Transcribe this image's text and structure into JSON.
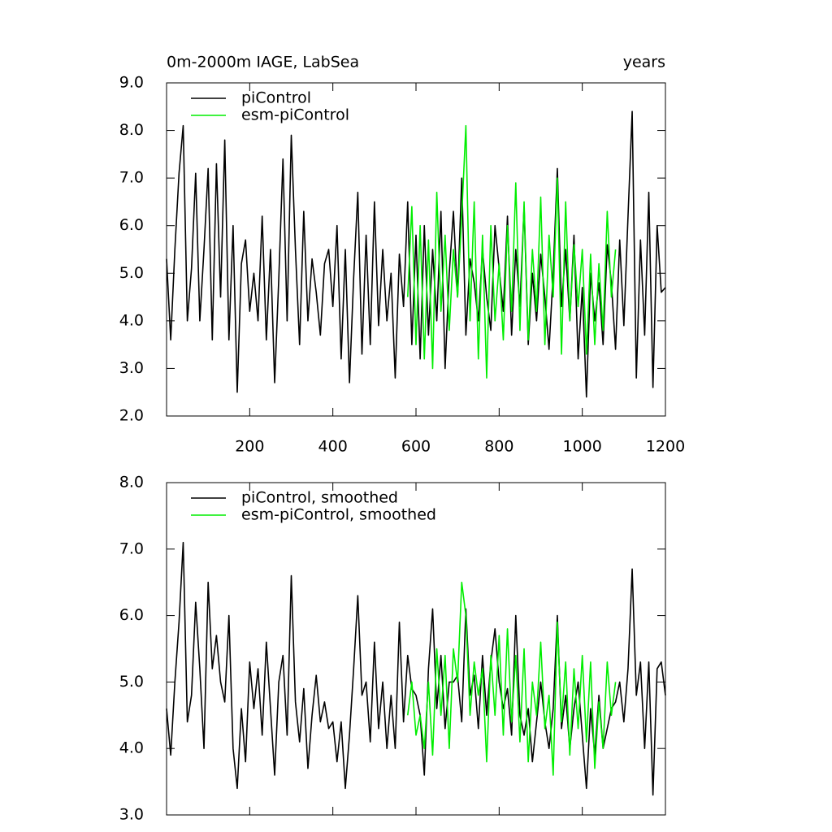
{
  "chart_data": [
    {
      "type": "line",
      "title": "0m-2000m IAGE, LabSea",
      "xlabel": "years",
      "xlim": [
        0,
        1200
      ],
      "xticks": [
        200,
        400,
        600,
        800,
        1000,
        1200
      ],
      "xtick_labels": true,
      "ylim": [
        2,
        9
      ],
      "yticks": [
        {
          "value": 2,
          "label": "2.0"
        },
        {
          "value": 3,
          "label": "3.0"
        },
        {
          "value": 4,
          "label": "4.0"
        },
        {
          "value": 5,
          "label": "5.0"
        },
        {
          "value": 6,
          "label": "6.0"
        },
        {
          "value": 7,
          "label": "7.0"
        },
        {
          "value": 8,
          "label": "8.0"
        },
        {
          "value": 9,
          "label": "9.0"
        }
      ],
      "legend": "upper left",
      "series": [
        {
          "name": "piControl",
          "color": "#000000",
          "x": [
            0,
            10,
            20,
            30,
            40,
            50,
            60,
            70,
            80,
            90,
            100,
            110,
            120,
            130,
            140,
            150,
            160,
            170,
            180,
            190,
            200,
            210,
            220,
            230,
            240,
            250,
            260,
            270,
            280,
            290,
            300,
            310,
            320,
            330,
            340,
            350,
            360,
            370,
            380,
            390,
            400,
            410,
            420,
            430,
            440,
            450,
            460,
            470,
            480,
            490,
            500,
            510,
            520,
            530,
            540,
            550,
            560,
            570,
            580,
            590,
            600,
            610,
            620,
            630,
            640,
            650,
            660,
            670,
            680,
            690,
            700,
            710,
            720,
            730,
            740,
            750,
            760,
            770,
            780,
            790,
            800,
            810,
            820,
            830,
            840,
            850,
            860,
            870,
            880,
            890,
            900,
            910,
            920,
            930,
            940,
            950,
            960,
            970,
            980,
            990,
            1000,
            1010,
            1020,
            1030,
            1040,
            1050,
            1060,
            1070,
            1080,
            1090,
            1100,
            1110,
            1120,
            1130,
            1140,
            1150,
            1160,
            1170,
            1180,
            1190,
            1200
          ],
          "values": [
            5.3,
            3.6,
            5.5,
            7.1,
            8.1,
            4.0,
            5.1,
            7.1,
            4.0,
            5.5,
            7.2,
            3.6,
            7.3,
            4.5,
            7.8,
            3.6,
            6.0,
            2.5,
            5.2,
            5.7,
            4.2,
            5.0,
            4.0,
            6.2,
            3.6,
            5.5,
            2.7,
            4.9,
            7.4,
            4.0,
            7.9,
            5.5,
            3.5,
            6.3,
            4.0,
            5.3,
            4.6,
            3.7,
            5.2,
            5.5,
            4.3,
            6.0,
            3.2,
            5.5,
            2.7,
            4.9,
            6.7,
            3.3,
            5.8,
            3.5,
            6.5,
            3.9,
            5.5,
            4.0,
            5.0,
            2.8,
            5.4,
            4.3,
            6.5,
            3.5,
            5.8,
            3.2,
            6.0,
            3.7,
            5.5,
            4.0,
            6.3,
            3.0,
            5.0,
            6.3,
            4.5,
            7.0,
            3.7,
            5.3,
            4.8,
            4.0,
            5.5,
            4.5,
            3.8,
            6.0,
            5.1,
            4.2,
            6.2,
            3.7,
            5.5,
            4.3,
            6.4,
            3.5,
            5.0,
            4.0,
            5.4,
            4.5,
            3.4,
            5.0,
            7.2,
            4.3,
            5.5,
            4.0,
            5.8,
            3.2,
            4.7,
            2.4,
            5.0,
            4.0,
            4.8,
            3.5,
            5.6,
            4.8,
            3.4,
            5.7,
            3.9,
            6.2,
            8.4,
            2.8,
            5.7,
            3.7,
            6.7,
            2.6,
            6.0,
            4.6,
            4.7
          ]
        },
        {
          "name": "esm-piControl",
          "color": "#00ee00",
          "x": [
            580,
            590,
            600,
            610,
            620,
            630,
            640,
            650,
            660,
            670,
            680,
            690,
            700,
            710,
            720,
            730,
            740,
            750,
            760,
            770,
            780,
            790,
            800,
            810,
            820,
            830,
            840,
            850,
            860,
            870,
            880,
            890,
            900,
            910,
            920,
            930,
            940,
            950,
            960,
            970,
            980,
            990,
            1000,
            1010,
            1020,
            1030,
            1040,
            1050,
            1060,
            1070,
            1080
          ],
          "values": [
            4.5,
            6.4,
            3.5,
            6.0,
            3.2,
            5.7,
            3.0,
            6.7,
            4.2,
            5.8,
            3.8,
            5.5,
            4.5,
            6.2,
            8.1,
            4.0,
            6.5,
            3.2,
            5.8,
            2.8,
            6.0,
            4.0,
            5.2,
            3.6,
            6.0,
            4.2,
            6.9,
            3.8,
            6.5,
            3.6,
            5.5,
            4.2,
            6.6,
            3.5,
            5.8,
            4.5,
            7.0,
            3.3,
            6.5,
            4.0,
            5.6,
            4.3,
            5.5,
            3.3,
            5.4,
            3.5,
            5.2,
            3.8,
            6.3,
            4.5,
            5.5
          ]
        }
      ]
    },
    {
      "type": "line",
      "xlim": [
        0,
        1200
      ],
      "xticks": [
        200,
        400,
        600,
        800,
        1000,
        1200
      ],
      "xtick_labels": false,
      "ylim": [
        3,
        8
      ],
      "yticks": [
        {
          "value": 3,
          "label": "3.0"
        },
        {
          "value": 4,
          "label": "4.0"
        },
        {
          "value": 5,
          "label": "5.0"
        },
        {
          "value": 6,
          "label": "6.0"
        },
        {
          "value": 7,
          "label": "7.0"
        },
        {
          "value": 8,
          "label": "8.0"
        }
      ],
      "legend": "upper left",
      "series": [
        {
          "name": "piControl, smoothed",
          "color": "#000000",
          "x": [
            0,
            10,
            20,
            30,
            40,
            50,
            60,
            70,
            80,
            90,
            100,
            110,
            120,
            130,
            140,
            150,
            160,
            170,
            180,
            190,
            200,
            210,
            220,
            230,
            240,
            250,
            260,
            270,
            280,
            290,
            300,
            310,
            320,
            330,
            340,
            350,
            360,
            370,
            380,
            390,
            400,
            410,
            420,
            430,
            440,
            450,
            460,
            470,
            480,
            490,
            500,
            510,
            520,
            530,
            540,
            550,
            560,
            570,
            580,
            590,
            600,
            610,
            620,
            630,
            640,
            650,
            660,
            670,
            680,
            690,
            700,
            710,
            720,
            730,
            740,
            750,
            760,
            770,
            780,
            790,
            800,
            810,
            820,
            830,
            840,
            850,
            860,
            870,
            880,
            890,
            900,
            910,
            920,
            930,
            940,
            950,
            960,
            970,
            980,
            990,
            1000,
            1010,
            1020,
            1030,
            1040,
            1050,
            1060,
            1070,
            1080,
            1090,
            1100,
            1110,
            1120,
            1130,
            1140,
            1150,
            1160,
            1170,
            1180,
            1190,
            1200
          ],
          "values": [
            4.6,
            3.9,
            5.0,
            5.9,
            7.1,
            4.4,
            4.8,
            6.2,
            5.2,
            4.0,
            6.5,
            5.2,
            5.7,
            5.0,
            4.7,
            6.0,
            4.0,
            3.4,
            4.6,
            3.8,
            5.3,
            4.6,
            5.2,
            4.2,
            5.6,
            4.6,
            3.6,
            5.0,
            5.4,
            4.2,
            6.6,
            4.7,
            4.1,
            4.9,
            3.7,
            4.5,
            5.1,
            4.4,
            4.7,
            4.3,
            4.4,
            3.8,
            4.4,
            3.4,
            4.2,
            5.2,
            6.3,
            4.8,
            5.0,
            4.1,
            5.6,
            4.3,
            5.0,
            4.0,
            4.8,
            4.0,
            5.9,
            4.4,
            5.4,
            4.9,
            4.8,
            4.5,
            3.6,
            5.2,
            6.1,
            4.6,
            5.4,
            4.3,
            5.0,
            5.0,
            5.1,
            4.4,
            6.1,
            4.8,
            5.1,
            4.3,
            5.4,
            4.5,
            5.3,
            5.8,
            5.0,
            4.6,
            4.9,
            4.2,
            6.0,
            4.5,
            4.2,
            4.6,
            3.8,
            4.4,
            5.0,
            4.4,
            4.0,
            4.6,
            6.0,
            4.3,
            4.8,
            4.0,
            4.6,
            5.0,
            4.2,
            3.4,
            4.6,
            3.9,
            4.8,
            4.0,
            4.3,
            4.6,
            4.7,
            5.0,
            4.4,
            5.2,
            6.7,
            4.8,
            5.3,
            4.0,
            5.3,
            3.3,
            5.2,
            5.3,
            4.8
          ]
        },
        {
          "name": "esm-piControl, smoothed",
          "color": "#00ee00",
          "x": [
            580,
            590,
            600,
            610,
            620,
            630,
            640,
            650,
            660,
            670,
            680,
            690,
            700,
            710,
            720,
            730,
            740,
            750,
            760,
            770,
            780,
            790,
            800,
            810,
            820,
            830,
            840,
            850,
            860,
            870,
            880,
            890,
            900,
            910,
            920,
            930,
            940,
            950,
            960,
            970,
            980,
            990,
            1000,
            1010,
            1020,
            1030,
            1040,
            1050,
            1060,
            1070,
            1080
          ],
          "values": [
            4.5,
            5.0,
            4.2,
            4.5,
            4.0,
            5.0,
            3.9,
            5.5,
            4.5,
            5.4,
            4.0,
            5.5,
            5.0,
            6.5,
            6.0,
            4.5,
            5.3,
            4.8,
            5.2,
            3.8,
            5.4,
            4.5,
            5.7,
            4.2,
            5.8,
            4.4,
            5.4,
            4.1,
            5.5,
            3.8,
            5.0,
            4.5,
            5.6,
            4.3,
            4.8,
            3.6,
            5.9,
            4.4,
            5.3,
            3.9,
            5.2,
            4.3,
            5.4,
            4.1,
            5.3,
            3.7,
            4.7,
            4.0,
            5.3,
            4.5,
            5.0
          ]
        }
      ]
    }
  ]
}
